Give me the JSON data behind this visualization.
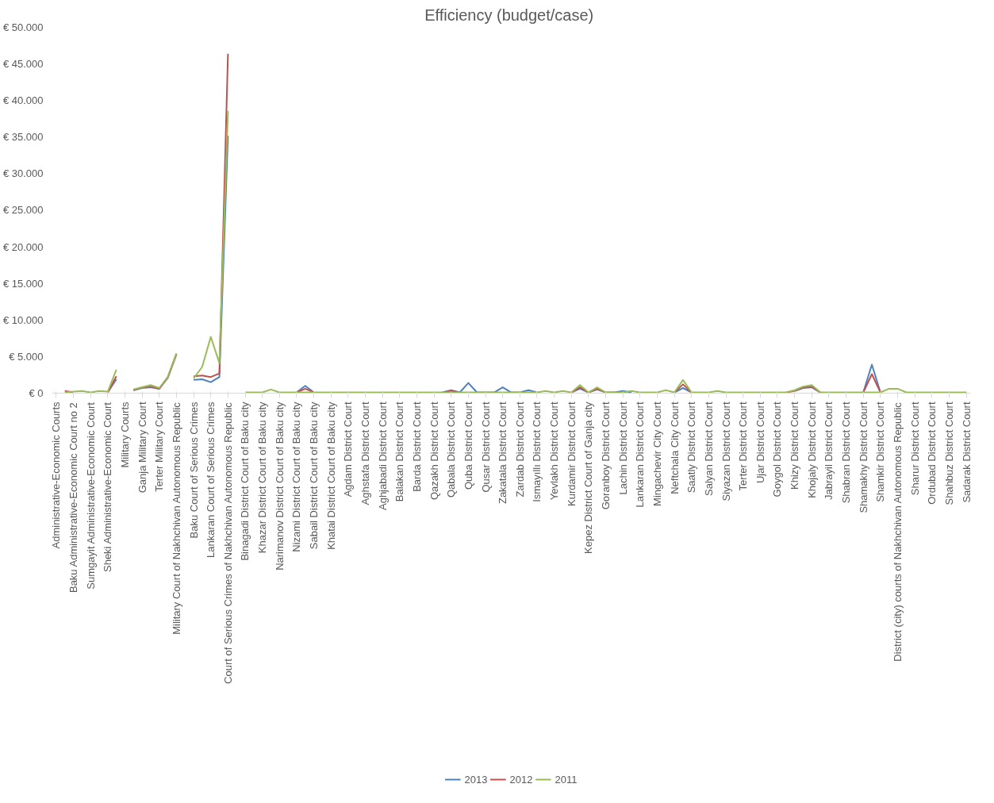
{
  "chart_data": {
    "type": "line",
    "title": "Efficiency  (budget/case)",
    "categories": [
      "Administrative-Economic Courts",
      null,
      "Baku Administrative-Economic Court no 2",
      null,
      "Sumgayit Administrative-Economic Court",
      null,
      "Sheki Administrative-Economic Court",
      null,
      "Military Courts",
      null,
      "Ganja Military Court",
      null,
      "Terter Military Court",
      null,
      "Military Court of Nakhchivan Autonomous Republic",
      null,
      "Baku Court of Serious Crimes",
      null,
      "Lankaran Court of Serious Crimes",
      null,
      "Court of Serious Crimes of Nakhchivan Autonomous Republic",
      null,
      "Binagadi District Court of Baku city",
      null,
      "Khazar District Court of Baku city",
      null,
      "Narimanov District Court of Baku city",
      null,
      "Nizami District Court of Baku city",
      null,
      "Sabail District Court of Baku city",
      null,
      "Khatai District Court of Baku city",
      null,
      "Agdam District Court",
      null,
      "Aghstafa District Court",
      null,
      "Aghjabadi District Court",
      null,
      "Balakan District Court",
      null,
      "Barda District Court",
      null,
      "Qazakh District Court",
      null,
      "Qabala District Court",
      null,
      "Quba District Court",
      null,
      "Qusar District Court",
      null,
      "Zakatala District Court",
      null,
      "Zardab District Court",
      null,
      "Ismayıllı District Court",
      null,
      "Yevlakh District Court",
      null,
      "Kurdamir District Court",
      null,
      "Kepez District Court of Ganja city",
      null,
      "Goranboy District Court",
      null,
      "Lachin District Court",
      null,
      "Lankaran District Court",
      null,
      "Mingachevir City Court",
      null,
      "Neftchala City Court",
      null,
      "Saatly District Court",
      null,
      "Salyan District Court",
      null,
      "Siyazan District Court",
      null,
      "Terter District Court",
      null,
      "Ujar District Court",
      null,
      "Goygol District Court",
      null,
      "Khizy District Court",
      null,
      "Khojaly District Court",
      null,
      "Jabrayil District Court",
      null,
      "Shabran District Court",
      null,
      "Shamakhy District Court",
      null,
      "Shamkir District Court",
      null,
      "District (city) courts of Nakhchivan Autonomous Republic",
      null,
      "Sharur District Court",
      null,
      "Ordubad District Court",
      null,
      "Shahbuz District Court",
      null,
      "Sadarak District Court"
    ],
    "series": [
      {
        "name": "2013",
        "color": "#4f81bd",
        "values": [
          null,
          null,
          null,
          null,
          null,
          null,
          100,
          1900,
          null,
          400,
          700,
          800,
          600,
          2100,
          5300,
          null,
          1800,
          1900,
          1500,
          2200,
          35200,
          null,
          null,
          null,
          null,
          null,
          null,
          null,
          100,
          1000,
          100,
          null,
          null,
          null,
          null,
          null,
          null,
          null,
          null,
          null,
          null,
          null,
          null,
          null,
          null,
          100,
          400,
          100,
          1400,
          100,
          100,
          100,
          800,
          100,
          100,
          400,
          100,
          null,
          null,
          null,
          100,
          600,
          100,
          500,
          100,
          100,
          300,
          100,
          null,
          null,
          null,
          null,
          100,
          700,
          100,
          null,
          null,
          null,
          null,
          null,
          null,
          null,
          null,
          null,
          null,
          null,
          300,
          700,
          800,
          100,
          null,
          null,
          null,
          null,
          100,
          3900,
          100,
          null,
          null,
          null,
          null,
          null,
          null,
          null,
          null,
          null,
          null
        ]
      },
      {
        "name": "2012",
        "color": "#c0504d",
        "values": [
          null,
          300,
          100,
          null,
          null,
          null,
          100,
          2300,
          null,
          400,
          800,
          900,
          600,
          2200,
          5400,
          null,
          2300,
          2400,
          2200,
          2700,
          46400,
          null,
          null,
          null,
          null,
          null,
          null,
          null,
          100,
          600,
          100,
          null,
          null,
          null,
          null,
          null,
          null,
          null,
          null,
          null,
          null,
          null,
          null,
          null,
          null,
          100,
          300,
          100,
          null,
          null,
          null,
          null,
          null,
          null,
          null,
          null,
          null,
          null,
          null,
          null,
          100,
          800,
          100,
          600,
          100,
          null,
          null,
          null,
          null,
          null,
          null,
          null,
          100,
          1200,
          100,
          null,
          null,
          null,
          null,
          null,
          null,
          null,
          null,
          null,
          null,
          100,
          300,
          800,
          900,
          100,
          null,
          null,
          null,
          null,
          100,
          2600,
          100,
          null,
          null,
          null,
          null,
          null,
          null,
          null,
          null,
          null,
          null
        ]
      },
      {
        "name": "2011",
        "color": "#9bbb59",
        "values": [
          null,
          100,
          200,
          300,
          100,
          300,
          200,
          3200,
          null,
          500,
          800,
          1100,
          700,
          2200,
          5400,
          null,
          2000,
          3600,
          7700,
          4100,
          38600,
          null,
          100,
          100,
          100,
          500,
          100,
          100,
          100,
          100,
          100,
          100,
          100,
          100,
          100,
          100,
          100,
          100,
          100,
          100,
          100,
          100,
          100,
          100,
          100,
          100,
          100,
          100,
          100,
          100,
          100,
          100,
          100,
          100,
          100,
          100,
          100,
          300,
          100,
          300,
          100,
          1100,
          100,
          800,
          100,
          100,
          100,
          300,
          100,
          100,
          100,
          400,
          100,
          1800,
          100,
          100,
          100,
          300,
          100,
          100,
          100,
          100,
          100,
          100,
          100,
          100,
          400,
          900,
          1100,
          100,
          100,
          100,
          100,
          100,
          100,
          100,
          100,
          600,
          600,
          100,
          100,
          100,
          100,
          100,
          100,
          100,
          100
        ]
      }
    ],
    "ylim": [
      0,
      50000
    ],
    "yticks": [
      {
        "value": 0,
        "label": "€ 0"
      },
      {
        "value": 5000,
        "label": "€ 5.000"
      },
      {
        "value": 10000,
        "label": "€ 10.000"
      },
      {
        "value": 15000,
        "label": "€ 15.000"
      },
      {
        "value": 20000,
        "label": "€ 20.000"
      },
      {
        "value": 25000,
        "label": "€ 25.000"
      },
      {
        "value": 30000,
        "label": "€ 30.000"
      },
      {
        "value": 35000,
        "label": "€ 35.000"
      },
      {
        "value": 40000,
        "label": "€ 40.000"
      },
      {
        "value": 45000,
        "label": "€ 45.000"
      },
      {
        "value": 50000,
        "label": "€ 50.000"
      }
    ],
    "grid": false,
    "legend": "bottom",
    "marker": "none",
    "line_style": "solid"
  }
}
